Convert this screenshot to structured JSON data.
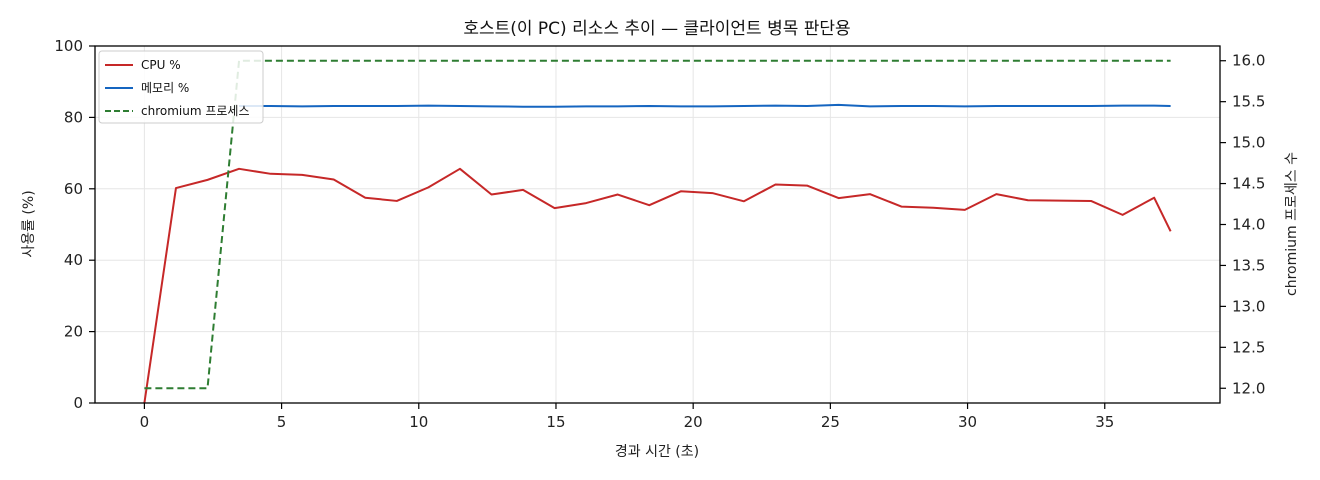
{
  "chart_data": {
    "type": "line",
    "title": "호스트(이 PC) 리소스 추이 — 클라이언트 병목 판단용",
    "xlabel": "경과 시간 (초)",
    "ylabel": "사용률 (%)",
    "y2label": "chromium 프로세스 수",
    "xlim": [
      -1.8,
      39.2
    ],
    "ylim": [
      0,
      100
    ],
    "y2lim": [
      11.82,
      16.18
    ],
    "xticks": [
      0,
      5,
      10,
      15,
      20,
      25,
      30,
      35
    ],
    "yticks": [
      0,
      20,
      40,
      60,
      80,
      100
    ],
    "y2ticks": [
      12.0,
      12.5,
      13.0,
      13.5,
      14.0,
      14.5,
      15.0,
      15.5,
      16.0
    ],
    "y2tick_labels": [
      "12.0",
      "12.5",
      "13.0",
      "13.5",
      "14.0",
      "14.5",
      "15.0",
      "15.5",
      "16.0"
    ],
    "grid": true,
    "legend_position": "top-left",
    "series": [
      {
        "name": "CPU %",
        "axis": "left",
        "color": "#c62828",
        "dash": "solid",
        "x": [
          0,
          1.15,
          2.3,
          3.45,
          4.6,
          5.75,
          6.9,
          8.05,
          9.2,
          10.35,
          11.5,
          12.65,
          13.8,
          14.95,
          16.1,
          17.25,
          18.4,
          19.55,
          20.7,
          21.85,
          23.0,
          24.15,
          25.3,
          26.45,
          27.6,
          28.75,
          29.9,
          31.05,
          32.2,
          33.35,
          34.5,
          35.65,
          36.8,
          37.4
        ],
        "y": [
          0,
          60.2,
          62.5,
          65.6,
          64.2,
          63.9,
          62.6,
          57.5,
          56.6,
          60.4,
          65.6,
          58.4,
          59.7,
          54.6,
          56.0,
          58.4,
          55.4,
          59.3,
          58.8,
          56.5,
          61.2,
          60.9,
          57.4,
          58.5,
          55.0,
          54.7,
          54.1,
          58.5,
          56.8,
          56.7,
          56.6,
          52.7,
          57.5,
          48.1
        ]
      },
      {
        "name": "메모리 %",
        "axis": "left",
        "color": "#1565c0",
        "dash": "solid",
        "x": [
          3.45,
          4.6,
          5.75,
          6.9,
          8.05,
          9.2,
          10.35,
          11.5,
          12.65,
          13.8,
          14.95,
          16.1,
          17.25,
          18.4,
          19.55,
          20.7,
          21.85,
          23.0,
          24.15,
          25.3,
          26.45,
          27.6,
          28.75,
          29.9,
          31.05,
          32.2,
          33.35,
          34.5,
          35.65,
          36.8,
          37.4
        ],
        "y": [
          83.2,
          83.2,
          83.1,
          83.2,
          83.2,
          83.2,
          83.3,
          83.2,
          83.1,
          83.0,
          83.0,
          83.1,
          83.1,
          83.2,
          83.1,
          83.1,
          83.2,
          83.3,
          83.2,
          83.5,
          83.1,
          83.2,
          83.2,
          83.1,
          83.2,
          83.2,
          83.2,
          83.2,
          83.3,
          83.3,
          83.2
        ]
      },
      {
        "name": "chromium 프로세스",
        "axis": "right",
        "color": "#2e7d32",
        "dash": "dashed",
        "x": [
          0,
          1.15,
          2.3,
          3.45,
          4.6,
          37.4
        ],
        "y": [
          12,
          12,
          12,
          16,
          16,
          16
        ]
      }
    ]
  }
}
